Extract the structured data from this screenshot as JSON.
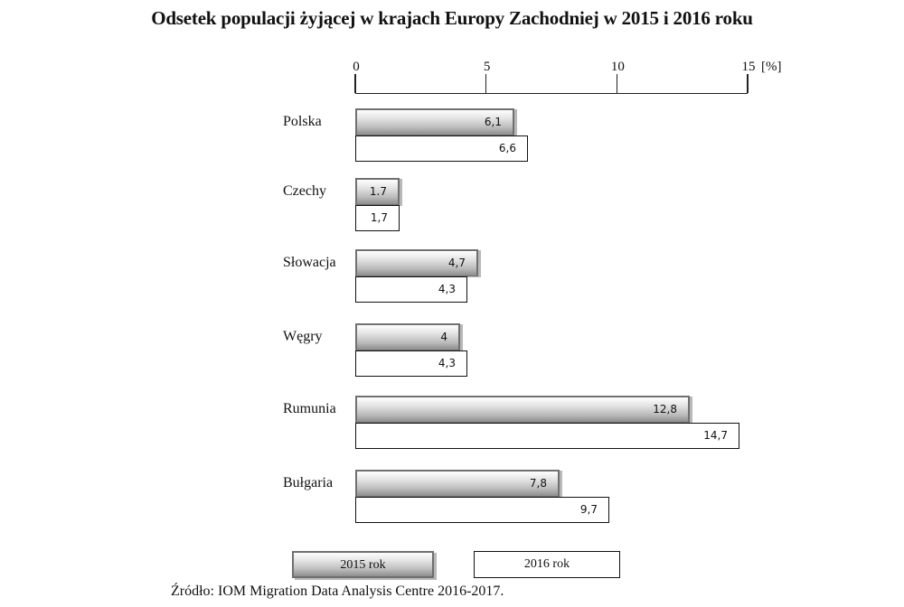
{
  "chart_data": {
    "type": "bar",
    "orientation": "horizontal",
    "title": "Odsetek populacji żyjącej w krajach Europy Zachodniej w 2015 i 2016 roku",
    "xlabel": "[%]",
    "ylabel": "",
    "xlim": [
      0,
      15
    ],
    "x_ticks": [
      "0",
      "5",
      "10",
      "15"
    ],
    "unit_label": "[%]",
    "grid": false,
    "legend_position": "bottom",
    "categories": [
      "Polska",
      "Czechy",
      "Słowacja",
      "Węgry",
      "Rumunia",
      "Bułgaria"
    ],
    "series": [
      {
        "name": "2015 rok",
        "values": [
          6.1,
          1.7,
          4.7,
          4.0,
          12.8,
          7.8
        ],
        "labels": [
          "6,1",
          "1.7",
          "4,7",
          "4",
          "12,8",
          "7,8"
        ],
        "color": "#bdbdbd"
      },
      {
        "name": "2016 rok",
        "values": [
          6.6,
          1.7,
          4.3,
          4.3,
          14.7,
          9.7
        ],
        "labels": [
          "6,6",
          "1,7",
          "4,3",
          "4,3",
          "14,7",
          "9,7"
        ],
        "color": "#ffffff"
      }
    ],
    "source": "Źródło: IOM Migration Data Analysis Centre 2016-2017."
  },
  "legend": {
    "item_2015": "2015 rok",
    "item_2016": "2016 rok"
  }
}
